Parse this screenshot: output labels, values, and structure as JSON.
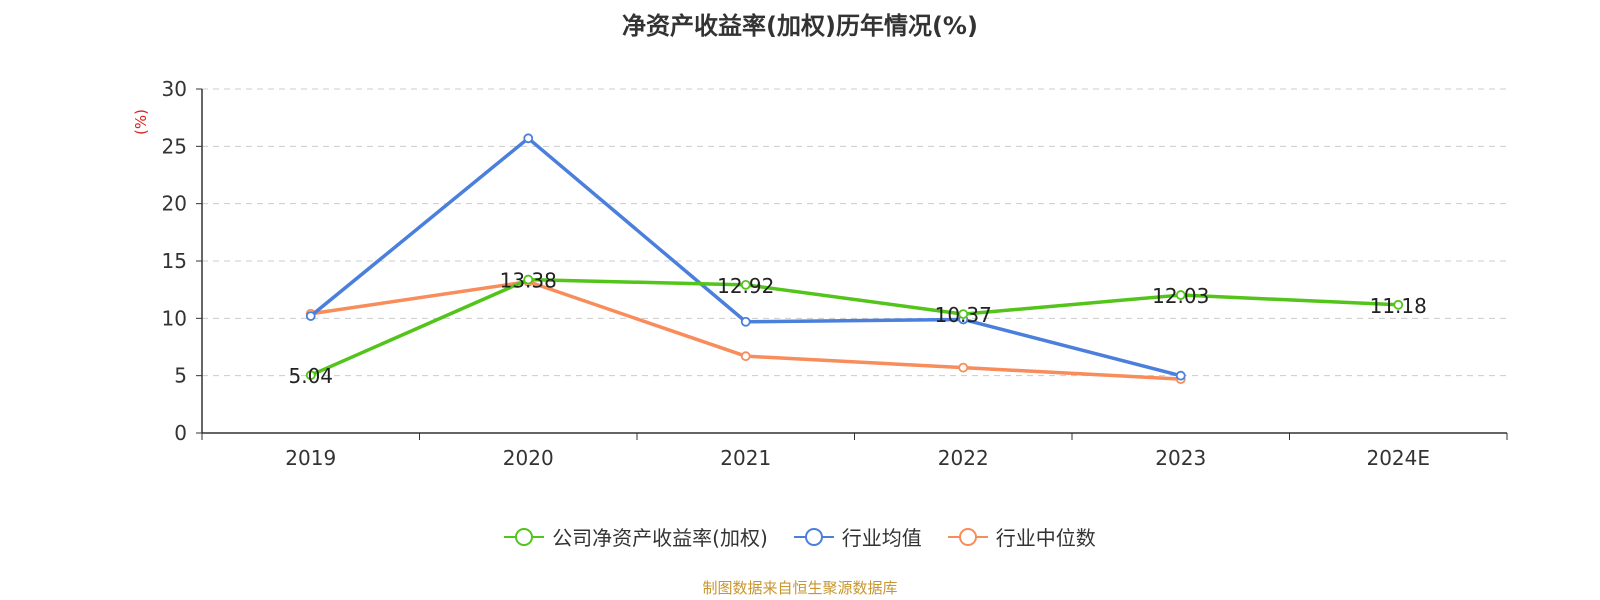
{
  "colors": {
    "company": "#52c41a",
    "industry_avg": "#4a7fdc",
    "industry_median": "#f88c5a",
    "axis_unit": "#e02020",
    "source": "#c8962e"
  },
  "source_text": "制图数据来自恒生聚源数据库",
  "chart_data": {
    "type": "line",
    "title": "净资产收益率(加权)历年情况(%)",
    "xlabel": "",
    "ylabel": "(%)",
    "categories": [
      "2019",
      "2020",
      "2021",
      "2022",
      "2023",
      "2024E"
    ],
    "ylim": [
      0,
      30
    ],
    "yticks": [
      0,
      5,
      10,
      15,
      20,
      25,
      30
    ],
    "grid": true,
    "legend_position": "bottom",
    "series": [
      {
        "name": "公司净资产收益率(加权)",
        "color_key": "company",
        "values": [
          5.04,
          13.38,
          12.92,
          10.37,
          12.03,
          11.18
        ],
        "labels": [
          "5.04",
          "13.38",
          "12.92",
          "10.37",
          "12.03",
          "11.18"
        ]
      },
      {
        "name": "行业均值",
        "color_key": "industry_avg",
        "values": [
          10.2,
          25.7,
          9.7,
          9.9,
          5.0,
          null
        ]
      },
      {
        "name": "行业中位数",
        "color_key": "industry_median",
        "values": [
          10.4,
          13.2,
          6.7,
          5.7,
          4.7,
          null
        ]
      }
    ]
  }
}
